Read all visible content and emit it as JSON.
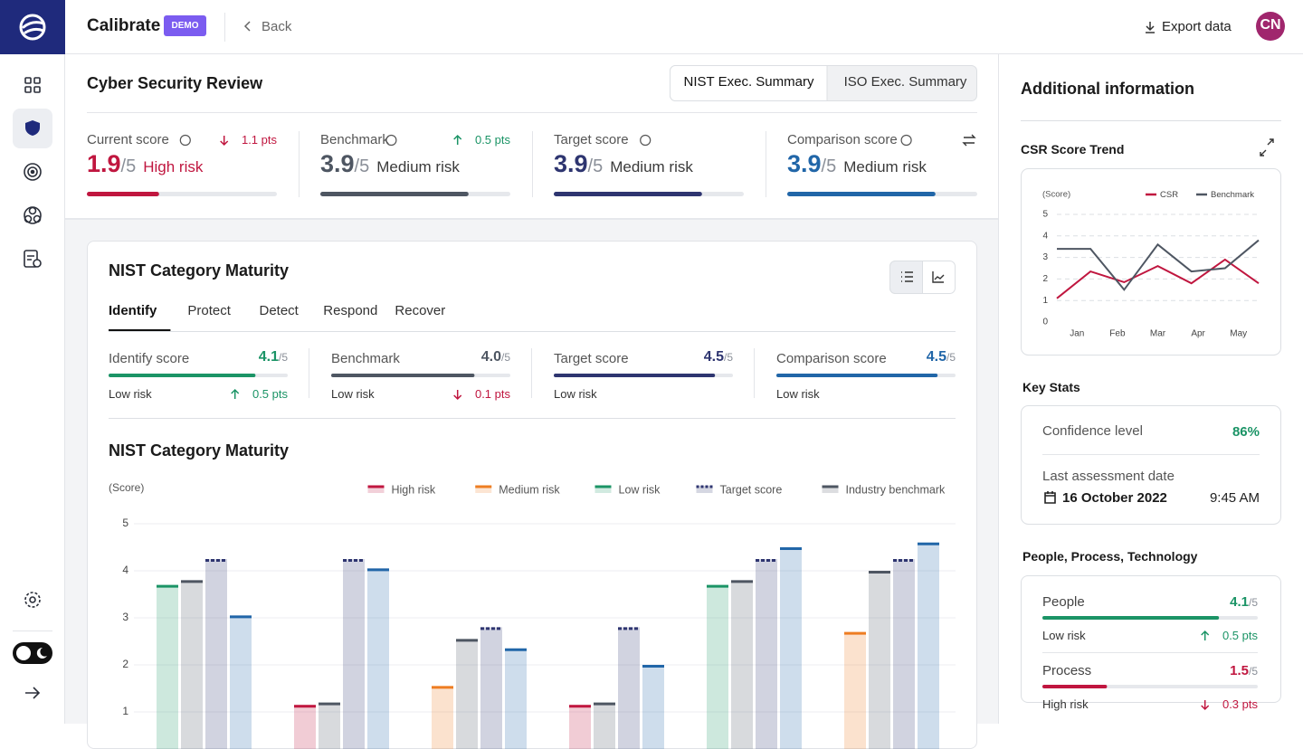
{
  "header": {
    "app": "Calibrate",
    "badge": "DEMO",
    "back": "Back",
    "export": "Export data",
    "avatar": "CN"
  },
  "review": {
    "title": "Cyber Security Review",
    "tabs": [
      "NIST Exec. Summary",
      "ISO Exec. Summary"
    ],
    "active_tab": 0,
    "scores": [
      {
        "label": "Current score",
        "value": "1.9",
        "out_of": "/5",
        "risk": "High risk",
        "delta": "1.1 pts",
        "trend": "down",
        "color": "#c0163f",
        "risk_color": "#c0163f"
      },
      {
        "label": "Benchmark",
        "value": "3.9",
        "out_of": "/5",
        "risk": "Medium risk",
        "delta": "0.5 pts",
        "trend": "up",
        "color": "#4e5662",
        "risk_color": "#3a3a3a"
      },
      {
        "label": "Target score",
        "value": "3.9",
        "out_of": "/5",
        "risk": "Medium risk",
        "color": "#2e3570",
        "risk_color": "#3a3a3a"
      },
      {
        "label": "Comparison score",
        "value": "3.9",
        "out_of": "/5",
        "risk": "Medium risk",
        "color": "#2166a8",
        "risk_color": "#3a3a3a"
      }
    ]
  },
  "maturity": {
    "title": "NIST Category Maturity",
    "tabs": [
      "Identify",
      "Protect",
      "Detect",
      "Respond",
      "Recover"
    ],
    "active_tab": 0,
    "scores": [
      {
        "label": "Identify score",
        "value": "4.1",
        "out_of": "/5",
        "risk": "Low risk",
        "delta": "0.5 pts",
        "trend": "up",
        "color": "#1b9466"
      },
      {
        "label": "Benchmark",
        "value": "4.0",
        "out_of": "/5",
        "risk": "Low risk",
        "delta": "0.1 pts",
        "trend": "down",
        "color": "#4e5662"
      },
      {
        "label": "Target score",
        "value": "4.5",
        "out_of": "/5",
        "risk": "Low risk",
        "color": "#2e3570"
      },
      {
        "label": "Comparison score",
        "value": "4.5",
        "out_of": "/5",
        "risk": "Low risk",
        "color": "#2166a8"
      }
    ]
  },
  "chart_data": [
    {
      "type": "bar",
      "title": "NIST Category Maturity",
      "y_label": "(Score)",
      "legend": [
        {
          "name": "High risk",
          "color": "#c0163f"
        },
        {
          "name": "Medium risk",
          "color": "#ee7d22"
        },
        {
          "name": "Low risk",
          "color": "#1b9466"
        },
        {
          "name": "Target score",
          "color": "#2e3570",
          "style": "dashed"
        },
        {
          "name": "Industry benchmark",
          "color": "#4e5662"
        }
      ],
      "series": [
        {
          "values": [
            3.7,
            1.15,
            1.55,
            1.15,
            3.7,
            2.7
          ],
          "colors": [
            "#1b9466",
            "#c0163f",
            "#ee7d22",
            "#c0163f",
            "#1b9466",
            "#ee7d22"
          ]
        },
        {
          "values": [
            3.8,
            1.2,
            2.55,
            1.2,
            3.8,
            4.0
          ],
          "color": "#4e5662"
        },
        {
          "values": [
            4.25,
            4.25,
            2.8,
            2.8,
            4.25,
            4.25
          ],
          "color": "#2e3570",
          "style": "dashed"
        },
        {
          "values": [
            3.05,
            4.05,
            2.35,
            2.0,
            4.5,
            4.6
          ],
          "color": "#2166a8"
        }
      ],
      "ylim": [
        0,
        5
      ],
      "yticks": [
        1,
        2,
        3,
        4,
        5
      ],
      "grid": true
    },
    {
      "type": "line",
      "title": "CSR Score Trend",
      "y_label": "(Score)",
      "x": [
        0,
        1,
        2,
        3,
        4,
        5,
        6
      ],
      "xlim": [
        0,
        6
      ],
      "xticks": [
        {
          "value": 0.6,
          "label": "Jan"
        },
        {
          "value": 1.8,
          "label": "Feb"
        },
        {
          "value": 3,
          "label": "Mar"
        },
        {
          "value": 4.2,
          "label": "Apr"
        },
        {
          "value": 5.4,
          "label": "May"
        }
      ],
      "ylim": [
        0,
        5
      ],
      "yticks": [
        0,
        1,
        2,
        3,
        4,
        5
      ],
      "grid": true,
      "series": [
        {
          "name": "CSR",
          "color": "#c0163f",
          "values": [
            1.1,
            2.35,
            1.85,
            2.6,
            1.8,
            2.9,
            1.8
          ]
        },
        {
          "name": "Benchmark",
          "color": "#4e5662",
          "values": [
            3.4,
            3.4,
            1.5,
            3.6,
            2.35,
            2.5,
            3.8
          ]
        }
      ]
    }
  ],
  "side": {
    "title": "Additional information",
    "key_stats": {
      "title": "Key Stats",
      "confidence_label": "Confidence level",
      "confidence": "86%",
      "date_label": "Last assessment date",
      "date": "16 October 2022",
      "time": "9:45 AM"
    },
    "ppt": {
      "title": "People, Process, Technology",
      "items": [
        {
          "label": "People",
          "value": "4.1",
          "out_of": "/5",
          "risk": "Low risk",
          "delta": "0.5 pts",
          "trend": "up",
          "color": "#1b9466"
        },
        {
          "label": "Process",
          "value": "1.5",
          "out_of": "/5",
          "risk": "High risk",
          "delta": "0.3 pts",
          "trend": "down",
          "color": "#c0163f"
        }
      ]
    }
  }
}
